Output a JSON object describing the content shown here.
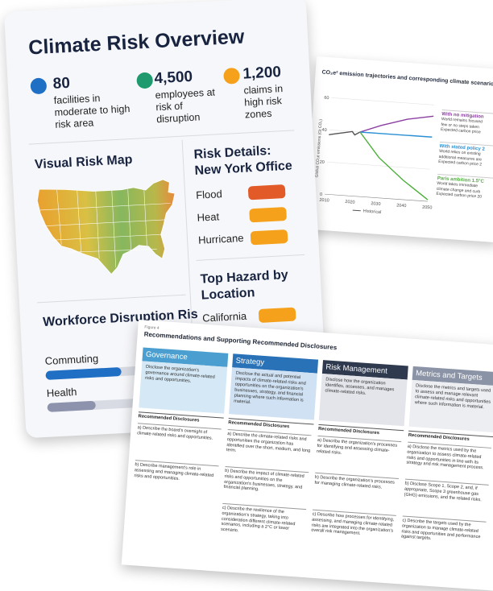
{
  "dashboard": {
    "title": "Climate Risk Overview",
    "stats": [
      {
        "value": "80",
        "text": "facilities in moderate  to high risk area",
        "color": "#1f6fc5"
      },
      {
        "value": "4,500",
        "text": "employees at risk of disruption",
        "color": "#1e9a6e"
      },
      {
        "value": "1,200",
        "text": "claims in high risk zones",
        "color": "#f5a11c"
      }
    ],
    "map": {
      "title": "Visual Risk Map"
    },
    "risk_details": {
      "title": "Risk Details: New York Office",
      "items": [
        {
          "label": "Flood",
          "color": "#e25a27"
        },
        {
          "label": "Heat",
          "color": "#f5a11c"
        },
        {
          "label": "Hurricane",
          "color": "#f5a11c"
        }
      ]
    },
    "workforce": {
      "title": "Workforce Disruption Ris",
      "items": [
        {
          "label": "Commuting",
          "level": 0.78,
          "color": "#1f6fc5"
        },
        {
          "label": "Health",
          "level": 0.5,
          "color": "#8d93ac"
        }
      ]
    },
    "top_hazard": {
      "title": "Top Hazard by Location",
      "items": [
        {
          "label": "California",
          "color": "#f5a11c"
        }
      ]
    }
  },
  "emissions_doc": {
    "title": "CO₂e² emission trajectories and corresponding climate scenarios³",
    "ylabel": "Global CO₂e emissions (Gt CO₂)",
    "legend_historical": "Historical",
    "scenarios": [
      {
        "name": "With no mitigation",
        "color": "#8a3fa0",
        "lines": [
          "World remains focused",
          "few or no steps taken",
          "Expected carbon price"
        ]
      },
      {
        "name": "With stated policy 2",
        "color": "#2a8fd4",
        "lines": [
          "World relies on existing",
          "additional measures are",
          "Expected carbon price 2"
        ]
      },
      {
        "name": "Paris ambition 1.5°C",
        "color": "#4caf3a",
        "lines": [
          "World takes immediate",
          "climate change and curb",
          "Expected carbon price 20"
        ]
      }
    ],
    "chart_data": {
      "type": "line",
      "title": "CO₂e² emission trajectories and corresponding climate scenarios³",
      "xlabel": "",
      "ylabel": "Global CO₂e emissions (Gt CO₂)",
      "xlim": [
        2010,
        2050
      ],
      "ylim": [
        0,
        60
      ],
      "x_ticks": [
        2010,
        2020,
        2030,
        2040,
        2050
      ],
      "y_ticks": [
        0,
        20,
        40,
        60
      ],
      "series": [
        {
          "name": "Historical",
          "color": "#555555",
          "x": [
            2010,
            2013,
            2016,
            2019,
            2020,
            2022
          ],
          "y": [
            37,
            38,
            39,
            40,
            38,
            40
          ]
        },
        {
          "name": "With no mitigation",
          "color": "#8a3fa0",
          "x": [
            2022,
            2030,
            2040,
            2050
          ],
          "y": [
            40,
            45,
            50,
            53
          ]
        },
        {
          "name": "With stated policy 2",
          "color": "#2a8fd4",
          "x": [
            2022,
            2030,
            2040,
            2050
          ],
          "y": [
            40,
            40,
            40,
            40
          ]
        },
        {
          "name": "Paris ambition 1.5°C",
          "color": "#4caf3a",
          "x": [
            2022,
            2030,
            2040,
            2050
          ],
          "y": [
            40,
            25,
            12,
            1
          ]
        }
      ]
    }
  },
  "recommendations_doc": {
    "figure_label": "Figure 4",
    "title": "Recommendations and Supporting Recommended Disclosures",
    "rd_heading": "Recommended Disclosures",
    "columns": [
      {
        "header": "Governance",
        "header_color": "#4a9fd0",
        "box_color": "#d4e8f5",
        "description": "Disclose the organization's governance around climate-related risks and opportunities.",
        "items": [
          "a) Describe the board's oversight of climate-related risks and opportunities.",
          "b) Describe management's role in assessing and managing climate-related risks and opportunities."
        ]
      },
      {
        "header": "Strategy",
        "header_color": "#2a72b8",
        "box_color": "#cfe1f2",
        "description": "Disclose the actual and potential impacts of climate-related risks and opportunities on the organization's businesses, strategy, and financial planning where such information is material.",
        "items": [
          "a) Describe the climate-related risks and opportunities the organization has identified over the short, medium, and long term.",
          "b) Describe the impact of climate-related risks and opportunities on the organization's businesses, strategy, and financial planning.",
          "c) Describe the resilience of the organization's strategy, taking into consideration different climate-related scenarios, including a 2°C or lower scenario."
        ]
      },
      {
        "header": "Risk Management",
        "header_color": "#2f3a4f",
        "box_color": "#e3e5ea",
        "description": "Disclose how the organization identifies, assesses, and manages climate-related risks.",
        "items": [
          "a) Describe the organization's processes for identifying and assessing climate-related risks.",
          "b) Describe the organization's processes for managing climate-related risks.",
          "c) Describe how processes for identifying, assessing, and managing climate-related risks are integrated into the organization's overall risk management."
        ]
      },
      {
        "header": "Metrics and Targets",
        "header_color": "#8b94a6",
        "box_color": "#eceef2",
        "description": "Disclose the metrics and targets used to assess and manage relevant climate-related risks and opportunities where such information is material.",
        "items": [
          "a) Disclose the metrics used by the organization to assess climate-related risks and opportunities in line with its strategy and risk management process.",
          "b) Disclose Scope 1, Scope 2, and, if appropriate, Scope 3 greenhouse gas (GHG) emissions, and the related risks.",
          "c) Describe the targets used by the organization to manage climate-related risks and opportunities and performance against targets."
        ]
      }
    ]
  }
}
